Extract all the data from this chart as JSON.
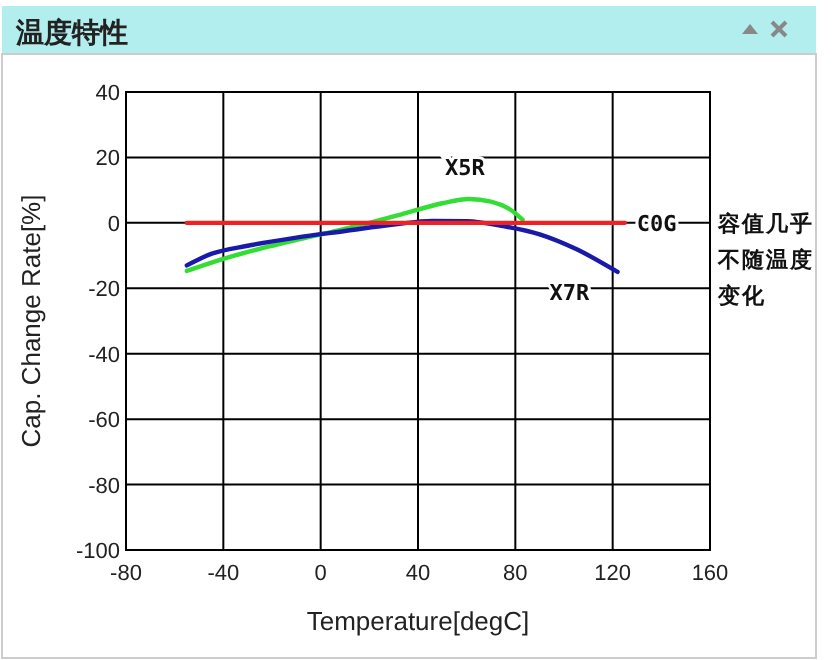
{
  "chart_data": {
    "type": "line",
    "title": "温度特性",
    "xlabel": "Temperature[degC]",
    "ylabel": "Cap. Change Rate[%]",
    "xlim": [
      -80,
      160
    ],
    "xticks": [
      -80,
      -40,
      0,
      40,
      80,
      120,
      160
    ],
    "ylim": [
      -100,
      40
    ],
    "yticks": [
      -100,
      -80,
      -60,
      -40,
      -20,
      0,
      20,
      40
    ],
    "grid": true,
    "series": [
      {
        "name": "X5R",
        "color": "#33dd33",
        "x": [
          -55,
          -40,
          -20,
          0,
          20,
          35,
          50,
          61,
          70,
          78,
          83
        ],
        "values": [
          -14.7,
          -11,
          -7,
          -3.5,
          0,
          3,
          6,
          7.3,
          6.5,
          4,
          1
        ]
      },
      {
        "name": "X7R",
        "color": "#1a1aaa",
        "x": [
          -55,
          -45,
          -30,
          -10,
          10,
          30,
          46,
          60,
          75,
          90,
          105,
          122
        ],
        "values": [
          -13,
          -9.5,
          -7,
          -4.5,
          -2.5,
          -0.5,
          0.6,
          0.5,
          -1,
          -3.5,
          -8,
          -15
        ]
      },
      {
        "name": "C0G",
        "color": "#ee2222",
        "x": [
          -55,
          125
        ],
        "values": [
          0,
          0
        ]
      }
    ],
    "annotations": [
      "容值几乎不随温度变化"
    ]
  }
}
